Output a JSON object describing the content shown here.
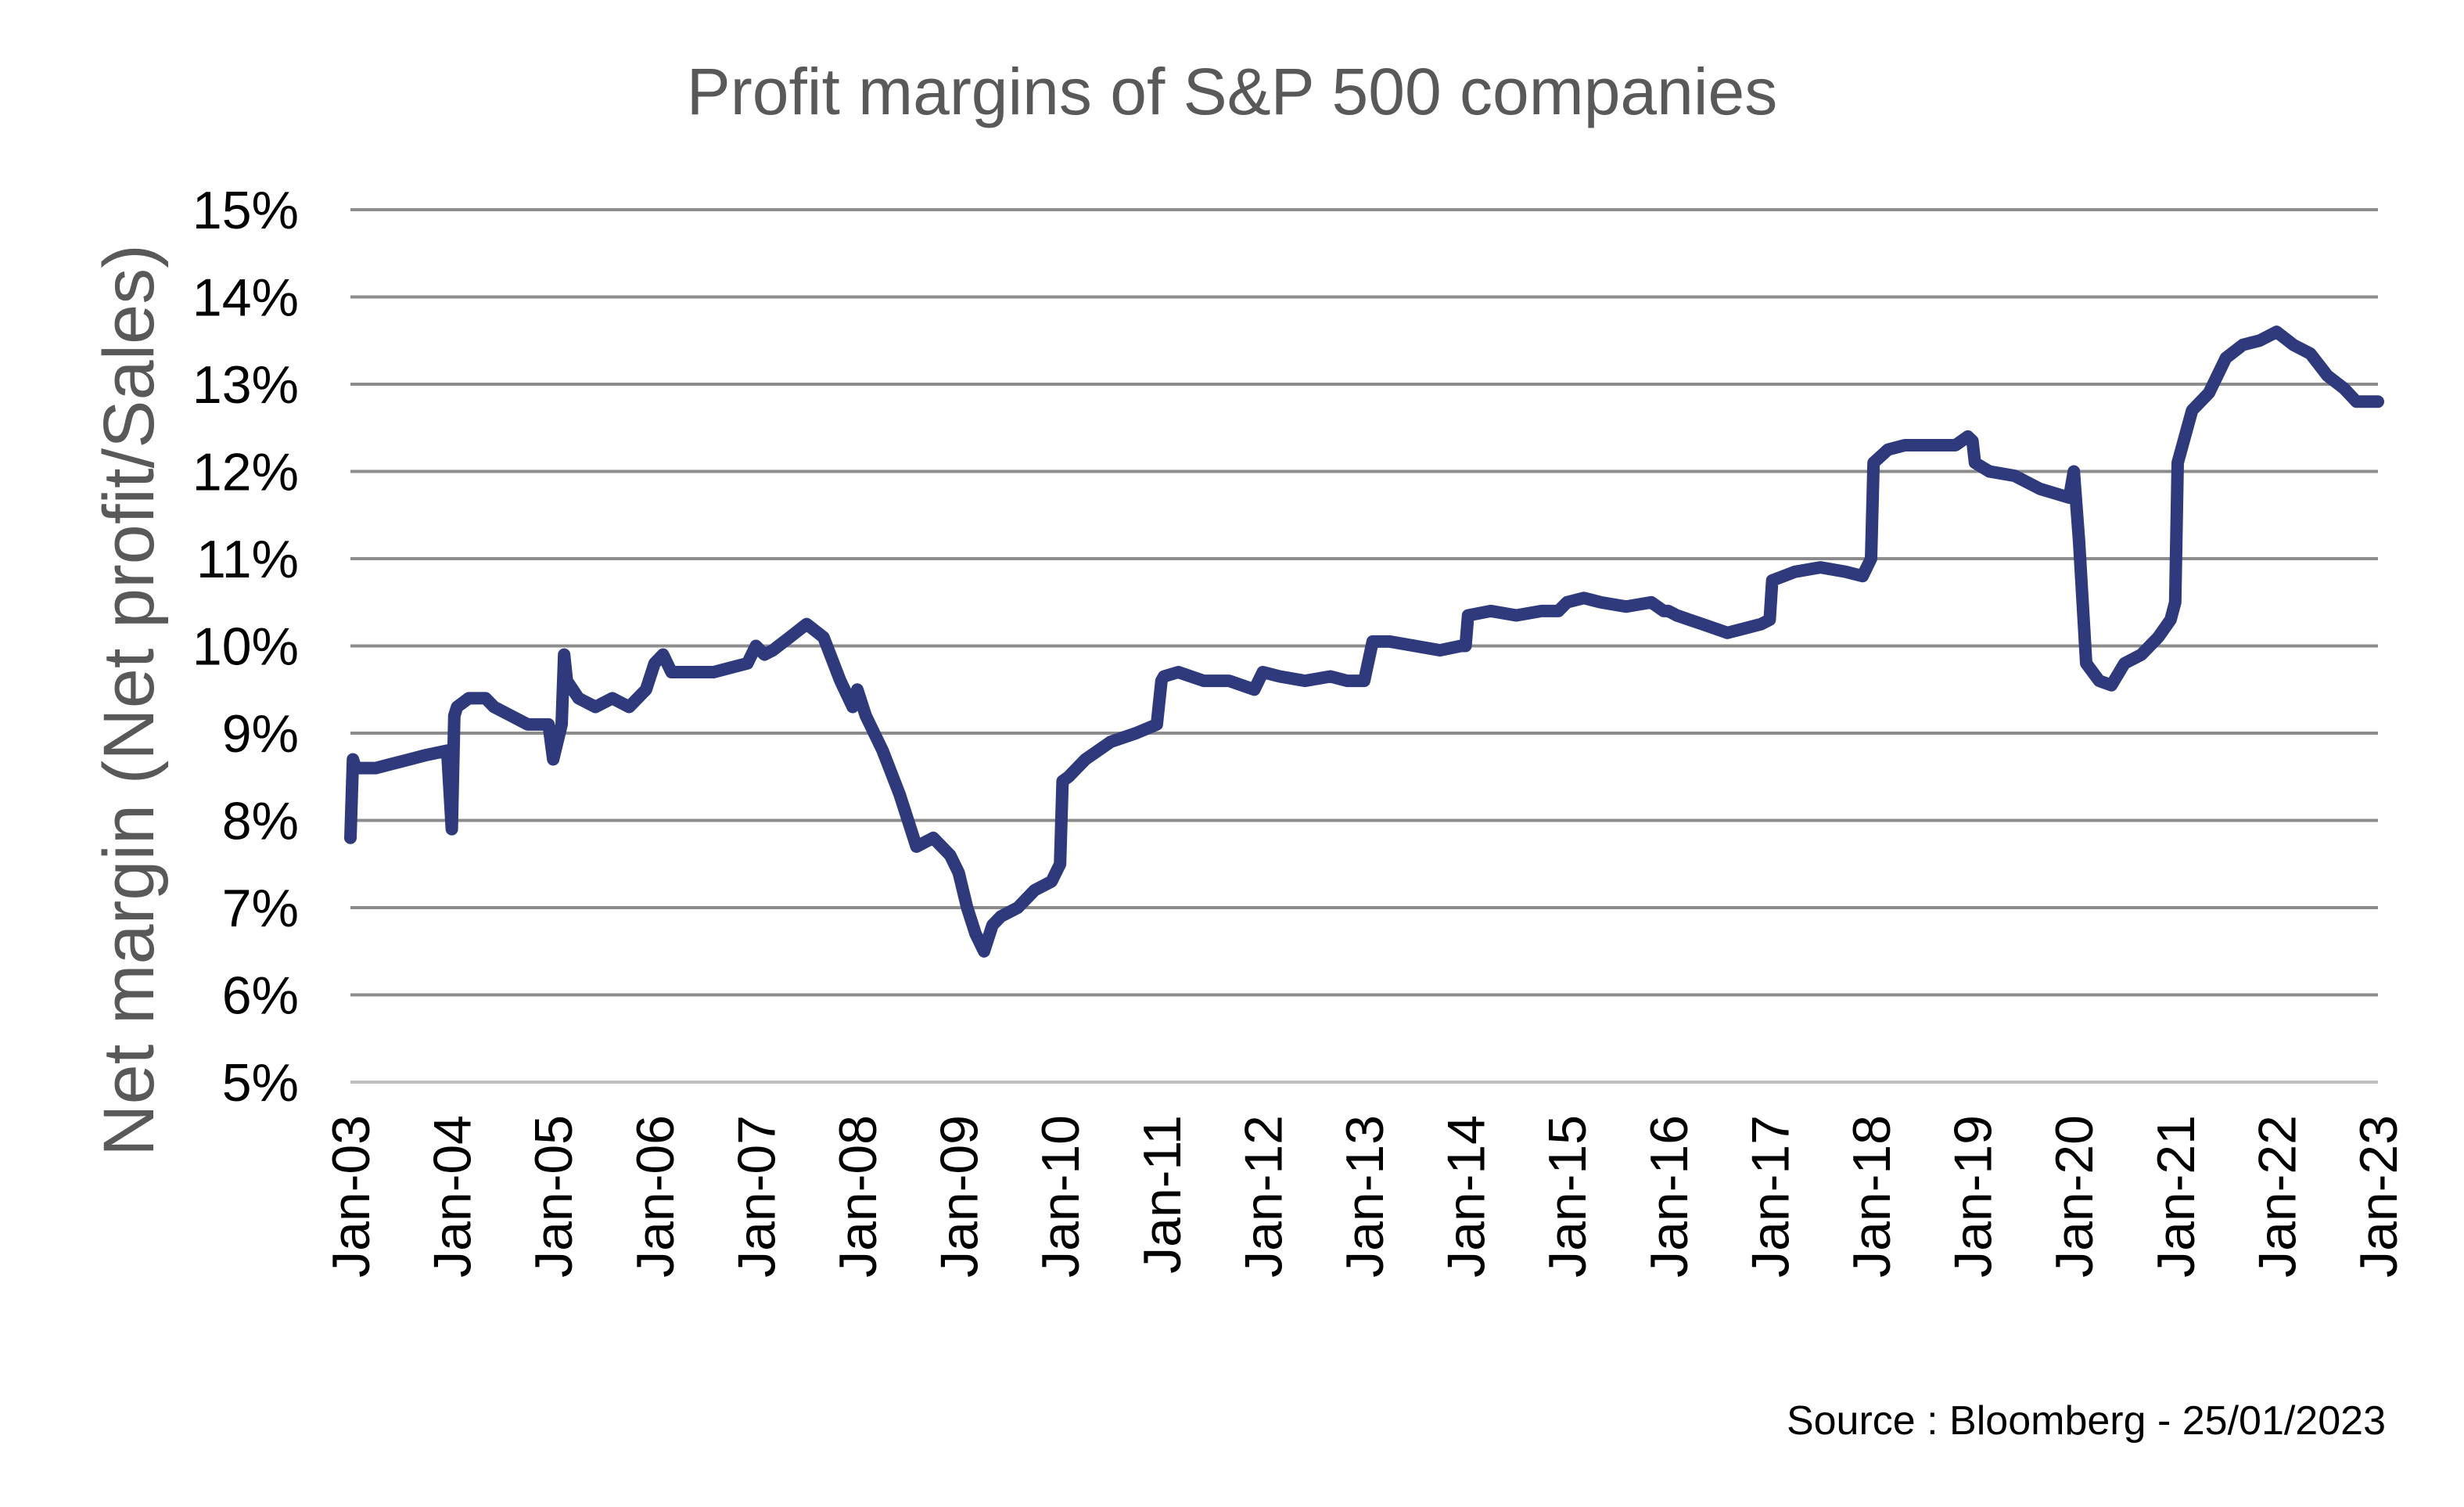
{
  "chart_data": {
    "type": "line",
    "title": "Profit margins of S&P 500 companies",
    "xlabel": "",
    "ylabel": "Net margin (Net profit/Sales)",
    "source": "Source : Bloomberg - 25/01/2023",
    "ylim": [
      5,
      15
    ],
    "xlim": [
      "Jan-03",
      "Jan-23"
    ],
    "y_ticks": [
      5,
      6,
      7,
      8,
      9,
      10,
      11,
      12,
      13,
      14,
      15
    ],
    "y_tick_labels": [
      "5%",
      "6%",
      "7%",
      "8%",
      "9%",
      "10%",
      "11%",
      "12%",
      "13%",
      "14%",
      "15%"
    ],
    "x_tick_labels": [
      "Jan-03",
      "Jan-04",
      "Jan-05",
      "Jan-06",
      "Jan-07",
      "Jan-08",
      "Jan-09",
      "Jan-10",
      "Jan-11",
      "Jan-12",
      "Jan-13",
      "Jan-14",
      "Jan-15",
      "Jan-16",
      "Jan-17",
      "Jan-18",
      "Jan-19",
      "Jan-20",
      "Jan-21",
      "Jan-22",
      "Jan-23"
    ],
    "grid": true,
    "legend": "none",
    "colors": {
      "series": "#2e3a7c",
      "grid": "#8c8c8c",
      "title": "#595959",
      "axis_title": "#595959"
    },
    "series": [
      {
        "x": [
          "2003-01-01",
          "2003-01-10",
          "2003-01-20",
          "2003-02-15",
          "2003-04-01",
          "2003-06-01",
          "2003-08-01",
          "2003-10-01",
          "2003-12-15",
          "2004-01-01",
          "2004-01-10",
          "2004-01-20",
          "2004-03-01",
          "2004-05-01",
          "2004-06-01",
          "2004-08-01",
          "2004-10-01",
          "2004-12-15",
          "2005-01-01",
          "2005-02-01",
          "2005-02-10",
          "2005-02-20",
          "2005-04-01",
          "2005-06-01",
          "2005-08-01",
          "2005-10-01",
          "2005-12-01",
          "2006-01-01",
          "2006-02-01",
          "2006-03-01",
          "2006-05-01",
          "2006-08-01",
          "2006-10-01",
          "2006-12-01",
          "2007-01-01",
          "2007-02-01",
          "2007-03-01",
          "2007-05-01",
          "2007-07-01",
          "2007-09-01",
          "2007-11-01",
          "2007-12-15",
          "2008-01-01",
          "2008-02-01",
          "2008-04-01",
          "2008-06-01",
          "2008-08-01",
          "2008-10-01",
          "2008-12-01",
          "2009-01-01",
          "2009-02-01",
          "2009-03-01",
          "2009-04-01",
          "2009-05-01",
          "2009-06-01",
          "2009-08-01",
          "2009-10-01",
          "2009-12-01",
          "2010-01-01",
          "2010-01-10",
          "2010-02-01",
          "2010-04-01",
          "2010-07-01",
          "2010-10-01",
          "2010-12-15",
          "2011-01-01",
          "2011-01-10",
          "2011-03-01",
          "2011-06-01",
          "2011-09-01",
          "2011-12-01",
          "2012-01-01",
          "2012-03-01",
          "2012-06-01",
          "2012-09-01",
          "2012-11-01",
          "2013-01-01",
          "2013-02-01",
          "2013-04-01",
          "2013-07-01",
          "2013-10-01",
          "2013-12-15",
          "2014-01-01",
          "2014-01-10",
          "2014-04-01",
          "2014-07-01",
          "2014-10-01",
          "2014-12-01",
          "2015-01-01",
          "2015-03-01",
          "2015-05-01",
          "2015-08-01",
          "2015-11-01",
          "2015-12-15",
          "2016-01-01",
          "2016-02-01",
          "2016-05-01",
          "2016-08-01",
          "2016-10-01",
          "2016-12-01",
          "2017-01-01",
          "2017-01-10",
          "2017-04-01",
          "2017-07-01",
          "2017-10-01",
          "2017-12-01",
          "2018-01-01",
          "2018-01-10",
          "2018-03-01",
          "2018-05-01",
          "2018-08-01",
          "2018-11-01",
          "2018-12-15",
          "2019-01-01",
          "2019-01-10",
          "2019-03-01",
          "2019-06-01",
          "2019-09-01",
          "2019-12-15",
          "2020-01-01",
          "2020-01-20",
          "2020-02-15",
          "2020-04-01",
          "2020-05-15",
          "2020-07-01",
          "2020-09-01",
          "2020-11-01",
          "2020-12-15",
          "2021-01-01",
          "2021-01-10",
          "2021-03-01",
          "2021-05-01",
          "2021-07-01",
          "2021-09-01",
          "2021-11-01",
          "2022-01-01",
          "2022-03-01",
          "2022-05-01",
          "2022-07-01",
          "2022-09-01",
          "2022-10-15",
          "2022-11-15",
          "2023-01-01"
        ],
        "values": [
          7.8,
          8.7,
          8.6,
          8.6,
          8.6,
          8.65,
          8.7,
          8.75,
          8.8,
          7.9,
          9.2,
          9.3,
          9.4,
          9.4,
          9.3,
          9.2,
          9.1,
          9.1,
          8.7,
          9.1,
          9.9,
          9.6,
          9.4,
          9.3,
          9.4,
          9.3,
          9.5,
          9.8,
          9.9,
          9.7,
          9.7,
          9.7,
          9.75,
          9.8,
          10.0,
          9.9,
          9.95,
          10.1,
          10.25,
          10.1,
          9.6,
          9.3,
          9.5,
          9.2,
          8.8,
          8.3,
          7.7,
          7.8,
          7.6,
          7.4,
          7.0,
          6.7,
          6.5,
          6.8,
          6.9,
          7.0,
          7.2,
          7.3,
          7.5,
          8.45,
          8.5,
          8.7,
          8.9,
          9.0,
          9.1,
          9.6,
          9.65,
          9.7,
          9.6,
          9.6,
          9.5,
          9.7,
          9.65,
          9.6,
          9.65,
          9.6,
          9.6,
          10.05,
          10.05,
          10.0,
          9.95,
          10.0,
          10.0,
          10.35,
          10.4,
          10.35,
          10.4,
          10.4,
          10.5,
          10.55,
          10.5,
          10.45,
          10.5,
          10.4,
          10.4,
          10.35,
          10.25,
          10.15,
          10.2,
          10.25,
          10.3,
          10.75,
          10.85,
          10.9,
          10.85,
          10.8,
          11.0,
          12.1,
          12.25,
          12.3,
          12.3,
          12.3,
          12.4,
          12.35,
          12.1,
          12.0,
          11.95,
          11.8,
          11.7,
          12.0,
          11.2,
          9.8,
          9.6,
          9.55,
          9.8,
          9.9,
          10.1,
          10.3,
          10.5,
          12.1,
          12.7,
          12.9,
          13.3,
          13.45,
          13.5,
          13.6,
          13.45,
          13.35,
          13.1,
          12.95,
          12.8,
          12.8,
          12.8
        ]
      }
    ]
  }
}
